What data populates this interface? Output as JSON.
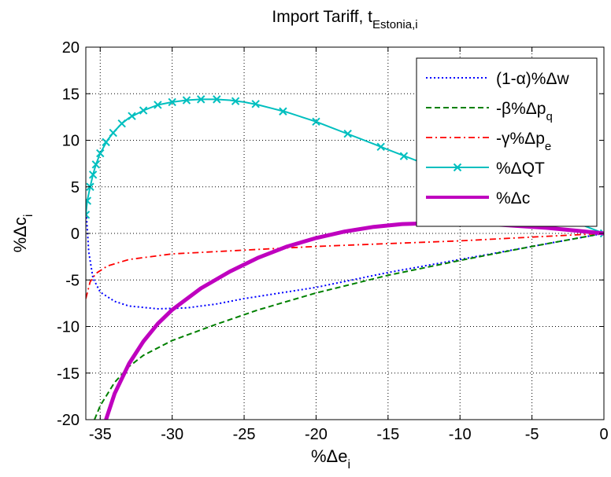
{
  "chart_data": {
    "type": "line",
    "title": "Import Tariff, t",
    "title_subscript": "Estonia,i",
    "xlabel": "%Δe",
    "xlabel_subscript": "i",
    "ylabel": "%Δc",
    "ylabel_subscript": "i",
    "xlim": [
      -36,
      0
    ],
    "ylim": [
      -20,
      20
    ],
    "xticks": [
      -35,
      -30,
      -25,
      -20,
      -15,
      -10,
      -5,
      0
    ],
    "yticks": [
      20,
      15,
      10,
      5,
      0,
      -5,
      -10,
      -15,
      -20
    ],
    "grid": true,
    "legend_position": "top-right",
    "series": [
      {
        "name": "(1-α)%Δw",
        "color": "#0000ff",
        "style": "dotted",
        "points": [
          [
            -36,
            3.0
          ],
          [
            -35.8,
            -2.0
          ],
          [
            -35.5,
            -4.8
          ],
          [
            -35,
            -6.3
          ],
          [
            -34,
            -7.3
          ],
          [
            -33,
            -7.8
          ],
          [
            -31,
            -8.1
          ],
          [
            -29,
            -8.0
          ],
          [
            -27,
            -7.6
          ],
          [
            -25,
            -7.0
          ],
          [
            -20,
            -5.8
          ],
          [
            -15,
            -4.2
          ],
          [
            -10,
            -2.8
          ],
          [
            -5,
            -1.4
          ],
          [
            0,
            0
          ]
        ]
      },
      {
        "name": "-β%Δp",
        "name_subscript": "q",
        "color": "#008000",
        "style": "dashed",
        "points": [
          [
            -35.4,
            -20.0
          ],
          [
            -35,
            -18.5
          ],
          [
            -34,
            -16.0
          ],
          [
            -33,
            -14.3
          ],
          [
            -32,
            -13.1
          ],
          [
            -30,
            -11.5
          ],
          [
            -27,
            -9.8
          ],
          [
            -24,
            -8.2
          ],
          [
            -20,
            -6.4
          ],
          [
            -15,
            -4.5
          ],
          [
            -10,
            -2.9
          ],
          [
            -5,
            -1.4
          ],
          [
            0,
            0
          ]
        ]
      },
      {
        "name": "-γ%Δp",
        "name_subscript": "e",
        "color": "#ff0000",
        "style": "dash-dot",
        "points": [
          [
            -36,
            -7.0
          ],
          [
            -35.7,
            -5.2
          ],
          [
            -35.3,
            -4.3
          ],
          [
            -34.5,
            -3.5
          ],
          [
            -33,
            -2.8
          ],
          [
            -30,
            -2.2
          ],
          [
            -25,
            -1.8
          ],
          [
            -20,
            -1.4
          ],
          [
            -15,
            -1.1
          ],
          [
            -10,
            -0.8
          ],
          [
            -5,
            -0.4
          ],
          [
            0,
            0
          ]
        ]
      },
      {
        "name": "%ΔQT",
        "color": "#00bfbf",
        "style": "solid-x",
        "points": [
          [
            -36,
            2.0
          ],
          [
            -35.9,
            3.5
          ],
          [
            -35.7,
            5.0
          ],
          [
            -35.5,
            6.3
          ],
          [
            -35.3,
            7.4
          ],
          [
            -35,
            8.6
          ],
          [
            -34.5,
            10.0
          ],
          [
            -34,
            11.0
          ],
          [
            -33.5,
            11.8
          ],
          [
            -33,
            12.4
          ],
          [
            -32,
            13.2
          ],
          [
            -31,
            13.8
          ],
          [
            -30,
            14.1
          ],
          [
            -29,
            14.3
          ],
          [
            -28,
            14.4
          ],
          [
            -27,
            14.4
          ],
          [
            -26,
            14.3
          ],
          [
            -25,
            14.1
          ],
          [
            -24,
            13.8
          ],
          [
            -23,
            13.4
          ],
          [
            -22,
            13.0
          ],
          [
            -21,
            12.5
          ],
          [
            -20,
            12.0
          ],
          [
            -19,
            11.4
          ],
          [
            -18,
            10.8
          ],
          [
            -17,
            10.2
          ],
          [
            -16,
            9.6
          ],
          [
            -15,
            9.0
          ],
          [
            -14,
            8.4
          ],
          [
            -13,
            7.8
          ],
          [
            -12,
            7.2
          ],
          [
            -11,
            6.6
          ],
          [
            -10,
            6.0
          ],
          [
            -9,
            5.4
          ],
          [
            -8,
            4.8
          ],
          [
            -7,
            4.2
          ],
          [
            -6,
            3.6
          ],
          [
            -5,
            3.0
          ],
          [
            -4,
            2.4
          ],
          [
            -3,
            1.8
          ],
          [
            -2,
            1.2
          ],
          [
            -1,
            0.6
          ],
          [
            0,
            0
          ]
        ],
        "markers": [
          [
            -36,
            2.0
          ],
          [
            -35.9,
            3.5
          ],
          [
            -35.7,
            5.0
          ],
          [
            -35.5,
            6.3
          ],
          [
            -35.3,
            7.4
          ],
          [
            -35,
            8.6
          ],
          [
            -34.6,
            9.8
          ],
          [
            -34.1,
            10.8
          ],
          [
            -33.5,
            11.8
          ],
          [
            -32.8,
            12.6
          ],
          [
            -32,
            13.2
          ],
          [
            -31,
            13.8
          ],
          [
            -30,
            14.1
          ],
          [
            -29,
            14.3
          ],
          [
            -28,
            14.4
          ],
          [
            -26.9,
            14.4
          ],
          [
            -25.6,
            14.2
          ],
          [
            -24.2,
            13.9
          ],
          [
            -22.3,
            13.1
          ],
          [
            -20,
            12.0
          ],
          [
            -17.8,
            10.7
          ],
          [
            -15.5,
            9.3
          ],
          [
            -13.9,
            8.3
          ],
          [
            -1.5,
            1.3
          ],
          [
            0,
            0
          ]
        ]
      },
      {
        "name": "%Δc",
        "color": "#bf00bf",
        "style": "solid-thick",
        "points": [
          [
            -34.6,
            -20.0
          ],
          [
            -34,
            -17.2
          ],
          [
            -33,
            -14.0
          ],
          [
            -32,
            -11.6
          ],
          [
            -31,
            -9.7
          ],
          [
            -30,
            -8.2
          ],
          [
            -28,
            -5.9
          ],
          [
            -26,
            -4.1
          ],
          [
            -24,
            -2.6
          ],
          [
            -22,
            -1.4
          ],
          [
            -20,
            -0.5
          ],
          [
            -18,
            0.2
          ],
          [
            -16,
            0.7
          ],
          [
            -14,
            1.0
          ],
          [
            -12,
            1.1
          ],
          [
            -10,
            1.1
          ],
          [
            -8,
            1.0
          ],
          [
            -6,
            0.8
          ],
          [
            -4,
            0.6
          ],
          [
            -2,
            0.3
          ],
          [
            0,
            0
          ]
        ]
      }
    ]
  }
}
